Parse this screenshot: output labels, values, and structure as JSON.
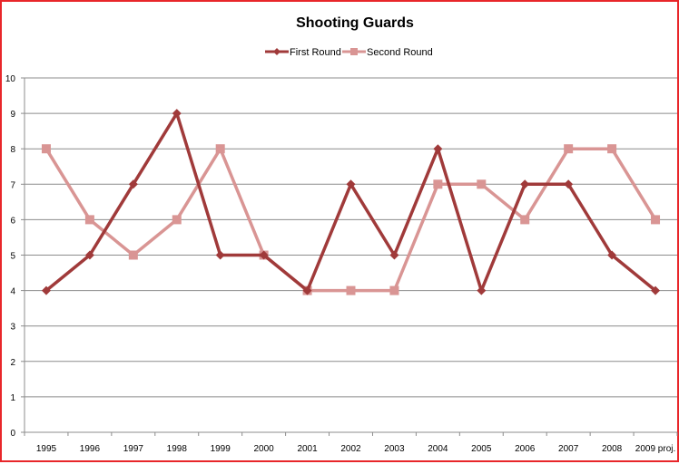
{
  "chart_data": {
    "type": "line",
    "title": "Shooting Guards",
    "xlabel": "",
    "ylabel": "",
    "categories": [
      "1995",
      "1996",
      "1997",
      "1998",
      "1999",
      "2000",
      "2001",
      "2002",
      "2003",
      "2004",
      "2005",
      "2006",
      "2007",
      "2008",
      "2009 proj."
    ],
    "ylim": [
      0,
      10
    ],
    "yticks": [
      "0",
      "1",
      "2",
      "3",
      "4",
      "5",
      "6",
      "7",
      "8",
      "9",
      "10"
    ],
    "grid": true,
    "legend_position": "top",
    "series": [
      {
        "name": "First Round",
        "color": "#a03a3a",
        "marker": "diamond",
        "values": [
          4,
          5,
          7,
          9,
          5,
          5,
          4,
          7,
          5,
          8,
          4,
          7,
          7,
          5,
          4
        ]
      },
      {
        "name": "Second Round",
        "color": "#d99594",
        "marker": "square",
        "values": [
          8,
          6,
          5,
          6,
          8,
          5,
          4,
          4,
          4,
          7,
          7,
          6,
          8,
          8,
          6
        ]
      }
    ]
  },
  "colors": {
    "frame_border": "#e8262a",
    "gridline": "#8c8c8c",
    "axis": "#8c8c8c"
  }
}
